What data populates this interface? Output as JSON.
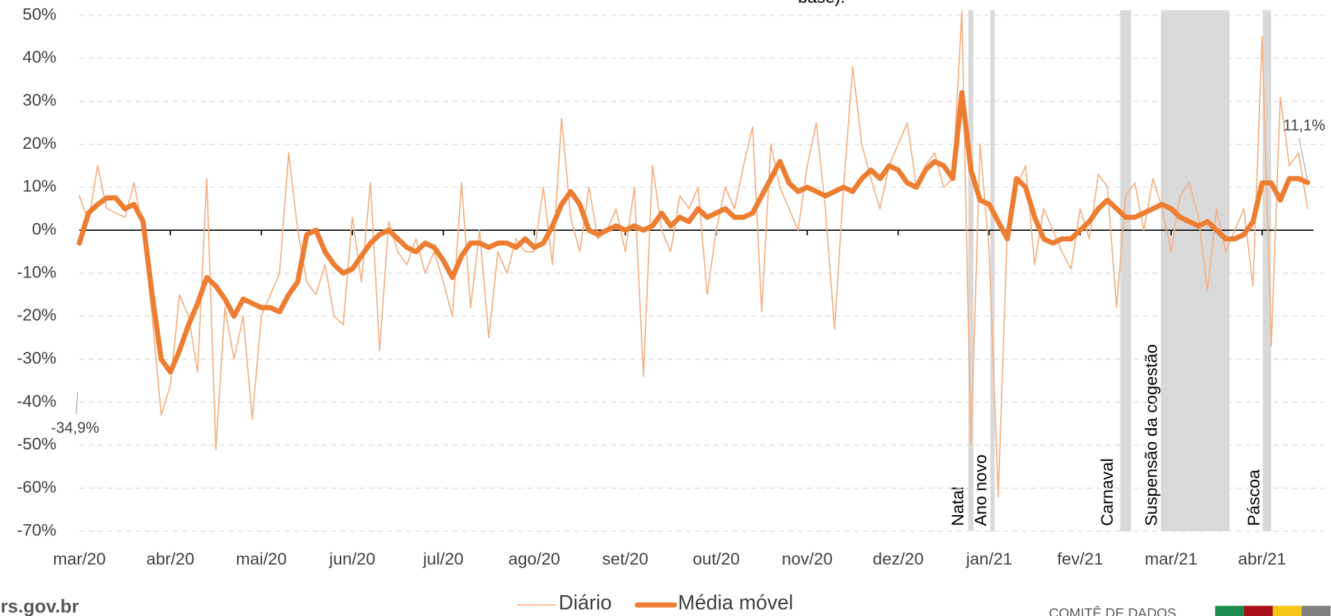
{
  "chart_data": {
    "type": "line",
    "note": "base).",
    "categories": [
      "mar/20",
      null,
      null,
      null,
      null,
      null,
      null,
      null,
      null,
      null,
      "abr/20",
      null,
      null,
      null,
      null,
      null,
      null,
      null,
      null,
      null,
      "mai/20",
      null,
      null,
      null,
      null,
      null,
      null,
      null,
      null,
      null,
      "jun/20",
      null,
      null,
      null,
      null,
      null,
      null,
      null,
      null,
      null,
      "jul/20",
      null,
      null,
      null,
      null,
      null,
      null,
      null,
      null,
      null,
      "ago/20",
      null,
      null,
      null,
      null,
      null,
      null,
      null,
      null,
      null,
      "set/20",
      null,
      null,
      null,
      null,
      null,
      null,
      null,
      null,
      null,
      "out/20",
      null,
      null,
      null,
      null,
      null,
      null,
      null,
      null,
      null,
      "nov/20",
      null,
      null,
      null,
      null,
      null,
      null,
      null,
      null,
      null,
      "dez/20",
      null,
      null,
      null,
      null,
      null,
      null,
      null,
      null,
      null,
      "jan/21",
      null,
      null,
      null,
      null,
      null,
      null,
      null,
      null,
      null,
      "fev/21",
      null,
      null,
      null,
      null,
      null,
      null,
      null,
      null,
      null,
      "mar/21",
      null,
      null,
      null,
      null,
      null,
      null,
      null,
      null,
      null,
      "abr/21",
      null,
      null,
      null,
      null,
      null
    ],
    "series": [
      {
        "name": "Diário",
        "color": "#f4b183",
        "width": 1.5,
        "values": [
          8,
          2,
          15,
          5,
          4,
          3,
          11,
          0,
          -20,
          -43,
          -36,
          -15,
          -20,
          -33,
          12,
          -51,
          -18,
          -30,
          -20,
          -44,
          -20,
          -15,
          -10,
          18,
          0,
          -12,
          -15,
          -8,
          -20,
          -22,
          3,
          -12,
          11,
          -28,
          2,
          -5,
          -8,
          -2,
          -10,
          -5,
          -12,
          -20,
          11,
          -18,
          0,
          -25,
          -5,
          -10,
          -2,
          -5,
          -5,
          10,
          -8,
          26,
          3,
          -5,
          10,
          -2,
          0,
          5,
          -5,
          10,
          -34,
          15,
          0,
          -5,
          8,
          5,
          10,
          -15,
          0,
          10,
          5,
          15,
          24,
          -19,
          20,
          10,
          5,
          0,
          15,
          25,
          5,
          -23,
          10,
          38,
          20,
          12,
          5,
          15,
          20,
          25,
          10,
          15,
          18,
          10,
          12,
          51,
          -50,
          20,
          -5,
          -62,
          0,
          10,
          15,
          -8,
          5,
          0,
          -5,
          -9,
          5,
          -2,
          13,
          10,
          -18,
          8,
          11,
          0,
          12,
          5,
          -5,
          8,
          11,
          3,
          -14,
          5,
          -5,
          0,
          5,
          -13,
          45,
          -27,
          31,
          15,
          18,
          5
        ]
      },
      {
        "name": "Média móvel",
        "color": "#ed7d31",
        "width": 6,
        "values": [
          -3,
          4,
          6,
          7.5,
          7.5,
          5,
          6,
          2,
          -15,
          -30,
          -33,
          -28,
          -22,
          -17,
          -11,
          -13,
          -16,
          -20,
          -16,
          -17,
          -18,
          -18,
          -19,
          -15,
          -12,
          -1,
          0,
          -5,
          -8,
          -10,
          -9,
          -6,
          -3,
          -1,
          0,
          -2,
          -4,
          -5,
          -3,
          -4,
          -7,
          -11,
          -6,
          -3,
          -3,
          -4,
          -3,
          -3,
          -4,
          -2,
          -4,
          -3,
          1,
          6,
          9,
          6,
          0,
          -1,
          0,
          1,
          0,
          1,
          0,
          1,
          4,
          1,
          3,
          2,
          5,
          3,
          4,
          5,
          3,
          3,
          4,
          8,
          12,
          16,
          11,
          9,
          10,
          9,
          8,
          9,
          10,
          9,
          12,
          14,
          12,
          15,
          14,
          11,
          10,
          14,
          16,
          15,
          12,
          32,
          14,
          7,
          6,
          2,
          -2,
          12,
          10,
          3,
          -2,
          -3,
          -2,
          -2,
          0,
          2,
          5,
          7,
          5,
          3,
          3,
          4,
          5,
          6,
          5,
          3,
          2,
          1,
          2,
          0,
          -2,
          -2,
          -1,
          2,
          11,
          11,
          7,
          12,
          12,
          11.1
        ]
      }
    ],
    "ylim": [
      -70,
      50
    ],
    "yticks": [
      {
        "value": -70,
        "label": "-70%"
      },
      {
        "value": -60,
        "label": "-60%"
      },
      {
        "value": -50,
        "label": "-50%"
      },
      {
        "value": -40,
        "label": "-40%"
      },
      {
        "value": -30,
        "label": "-30%"
      },
      {
        "value": -20,
        "label": "-20%"
      },
      {
        "value": -10,
        "label": "-10%"
      },
      {
        "value": 0,
        "label": "0%"
      },
      {
        "value": 10,
        "label": "10%"
      },
      {
        "value": 20,
        "label": "20%"
      },
      {
        "value": 30,
        "label": "30%"
      },
      {
        "value": 40,
        "label": "40%"
      },
      {
        "value": 50,
        "label": "50%"
      }
    ],
    "grid": true,
    "legend": "bottom",
    "annotations": [
      {
        "text": "-34,9%",
        "value": -34.9
      },
      {
        "text": "11,1%",
        "value": 11.1
      }
    ],
    "events": [
      "Natal",
      "Ano novo",
      "Carnaval",
      "Suspensão da cogestão",
      "Páscoa"
    ]
  },
  "footer": {
    "site": "rs.gov.br",
    "credit": "COMITÊ DE DADOS"
  }
}
